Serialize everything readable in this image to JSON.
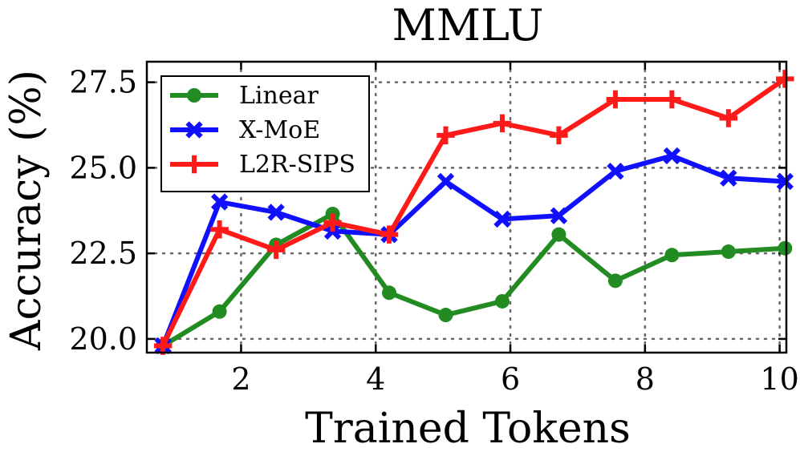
{
  "chart_data": {
    "type": "line",
    "title": "MMLU",
    "xlabel": "Trained Tokens",
    "ylabel": "Accuracy (%)",
    "xlim": [
      0.6,
      10.1
    ],
    "ylim": [
      19.6,
      28.1
    ],
    "xticks": [
      2,
      4,
      6,
      8,
      10
    ],
    "xtick_labels": [
      "2",
      "4",
      "6",
      "8",
      "10"
    ],
    "yticks": [
      20.0,
      22.5,
      25.0,
      27.5
    ],
    "ytick_labels": [
      "20.0",
      "22.5",
      "25.0",
      "27.5"
    ],
    "grid": true,
    "legend_position": "top-left",
    "x": [
      0.84,
      1.68,
      2.52,
      3.36,
      4.2,
      5.04,
      5.88,
      6.72,
      7.56,
      8.4,
      9.24,
      10.08
    ],
    "series": [
      {
        "name": "Linear",
        "color": "#228b22",
        "marker": "circle",
        "values": [
          19.8,
          20.8,
          22.75,
          23.65,
          21.35,
          20.7,
          21.1,
          23.05,
          21.7,
          22.45,
          22.55,
          22.65
        ]
      },
      {
        "name": "X-MoE",
        "color": "#1010ff",
        "marker": "x",
        "values": [
          19.8,
          24.0,
          23.7,
          23.15,
          23.05,
          24.6,
          23.5,
          23.6,
          24.9,
          25.35,
          24.7,
          24.6
        ]
      },
      {
        "name": "L2R-SIPS",
        "color": "#ff1a1a",
        "marker": "plus",
        "values": [
          19.8,
          23.2,
          22.6,
          23.4,
          23.05,
          25.95,
          26.3,
          25.95,
          27.0,
          27.0,
          26.45,
          27.6
        ]
      }
    ]
  }
}
